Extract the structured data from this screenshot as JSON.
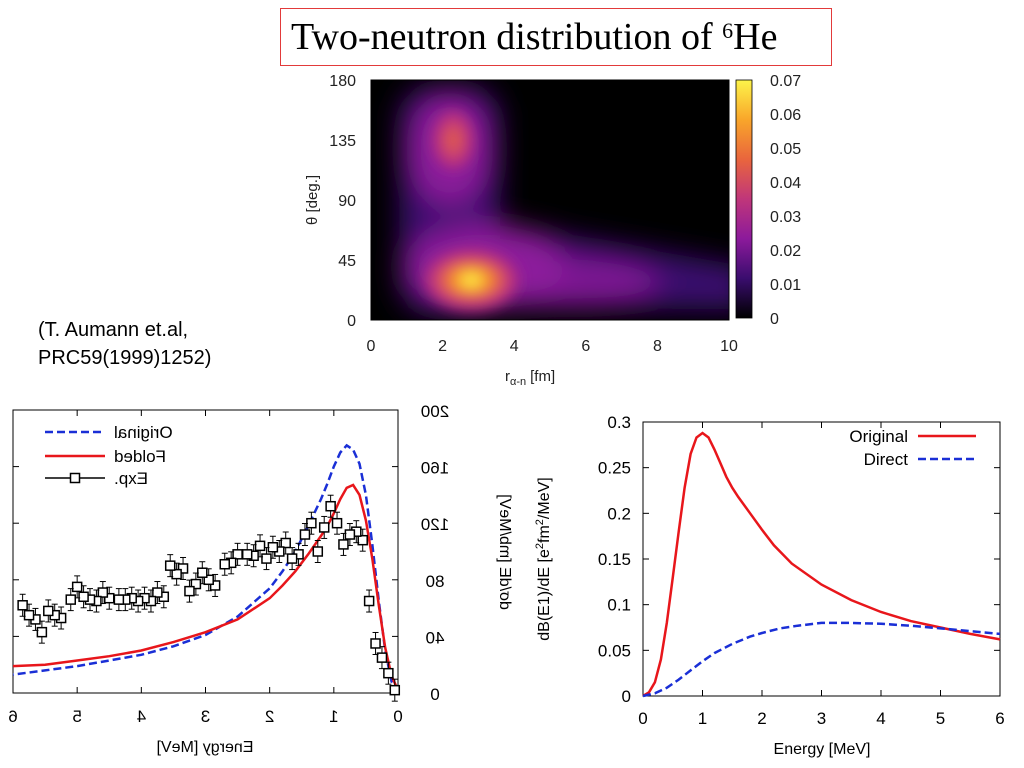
{
  "title": {
    "prefix": "Two-neutron distribution of ",
    "superscript": "6",
    "suffix": "He"
  },
  "citation": {
    "line1": "(T. Aumann et.al,",
    "line2": "PRC59(1999)1252)"
  },
  "chart_data": [
    {
      "type": "heatmap",
      "xlabel_main": "r",
      "xlabel_sub": "α-n",
      "xlabel_unit": "[fm]",
      "ylabel": "θ [deg.]",
      "xlim": [
        0,
        10
      ],
      "ylim": [
        0,
        180
      ],
      "xticks": [
        "0",
        "2",
        "4",
        "6",
        "8",
        "10"
      ],
      "yticks": [
        "0",
        "45",
        "90",
        "135",
        "180"
      ],
      "colorbar": {
        "min": 0,
        "max": 0.07,
        "ticks": [
          "0",
          "0.01",
          "0.02",
          "0.03",
          "0.04",
          "0.05",
          "0.06",
          "0.07"
        ]
      },
      "peaks": [
        {
          "r": 2.8,
          "theta": 30,
          "value": 0.07
        },
        {
          "r": 2.3,
          "theta": 135,
          "value": 0.035
        }
      ],
      "colors": [
        "#000000",
        "#3a0d6e",
        "#8c1a9b",
        "#c0367a",
        "#e9653d",
        "#f9a62a",
        "#fdf44a"
      ]
    },
    {
      "type": "line",
      "mirrored": true,
      "xlabel": "Energy [MeV]",
      "ylabel": "dσ/dE [mb/MeV]",
      "xlim": [
        0,
        6
      ],
      "ylim": [
        0,
        200
      ],
      "xticks": [
        "0",
        "1",
        "2",
        "3",
        "4",
        "5",
        "6"
      ],
      "yticks": [
        "0",
        "40",
        "80",
        "120",
        "160",
        "200"
      ],
      "legend": [
        "Original",
        "Folded",
        "Exp."
      ],
      "legend_position": "top-right",
      "series": [
        {
          "name": "Original",
          "color": "#1a2fd6",
          "dashed": true,
          "x": [
            0.0,
            0.1,
            0.2,
            0.3,
            0.4,
            0.5,
            0.6,
            0.7,
            0.8,
            0.9,
            1.0,
            1.1,
            1.2,
            1.4,
            1.6,
            1.8,
            2.0,
            2.5,
            3.0,
            3.5,
            4.0,
            4.5,
            5.0,
            5.5,
            6.0
          ],
          "y": [
            0,
            8,
            30,
            65,
            105,
            140,
            162,
            172,
            175,
            170,
            160,
            148,
            137,
            118,
            100,
            86,
            74,
            54,
            41,
            33,
            27,
            23,
            19,
            16,
            13
          ]
        },
        {
          "name": "Folded",
          "color": "#e8161b",
          "dashed": false,
          "x": [
            0.0,
            0.1,
            0.2,
            0.3,
            0.4,
            0.5,
            0.6,
            0.7,
            0.8,
            0.9,
            1.0,
            1.1,
            1.2,
            1.4,
            1.6,
            1.8,
            2.0,
            2.5,
            3.0,
            3.5,
            4.0,
            4.5,
            5.0,
            5.5,
            6.0
          ],
          "y": [
            2,
            12,
            32,
            62,
            95,
            122,
            140,
            147,
            145,
            137,
            127,
            118,
            111,
            98,
            86,
            76,
            67,
            52,
            43,
            36,
            30,
            26,
            23,
            20,
            19
          ]
        },
        {
          "name": "Exp.",
          "color": "#000000",
          "marker": "square",
          "x": [
            0.05,
            0.15,
            0.25,
            0.35,
            0.45,
            0.55,
            0.65,
            0.75,
            0.85,
            0.95,
            1.05,
            1.15,
            1.25,
            1.35,
            1.45,
            1.55,
            1.65,
            1.75,
            1.85,
            1.95,
            2.05,
            2.15,
            2.25,
            2.35,
            2.5,
            2.6,
            2.7,
            2.85,
            2.95,
            3.05,
            3.15,
            3.25,
            3.35,
            3.45,
            3.55,
            3.65,
            3.75,
            3.85,
            3.95,
            4.05,
            4.15,
            4.25,
            4.35,
            4.5,
            4.6,
            4.7,
            4.8,
            4.9,
            5.0,
            5.1,
            5.25,
            5.35,
            5.45,
            5.55,
            5.65,
            5.75,
            5.85
          ],
          "y": [
            2,
            14,
            25,
            35,
            65,
            108,
            114,
            112,
            105,
            120,
            132,
            117,
            100,
            120,
            112,
            98,
            95,
            106,
            100,
            103,
            95,
            104,
            97,
            98,
            98,
            92,
            91,
            76,
            80,
            85,
            77,
            72,
            88,
            84,
            90,
            68,
            71,
            65,
            67,
            65,
            67,
            66,
            66,
            67,
            71,
            65,
            66,
            68,
            75,
            66,
            53,
            55,
            58,
            43,
            52,
            55,
            62
          ]
        }
      ]
    },
    {
      "type": "line",
      "xlabel": "Energy [MeV]",
      "ylabel_main": "dB(E1)/dE [e",
      "ylabel_sup1": "2",
      "ylabel_mid": "fm",
      "ylabel_sup2": "2",
      "ylabel_end": "/MeV]",
      "xlim": [
        0,
        6
      ],
      "ylim": [
        0,
        0.3
      ],
      "xticks": [
        "0",
        "1",
        "2",
        "3",
        "4",
        "5",
        "6"
      ],
      "yticks": [
        "0",
        "0.05",
        "0.1",
        "0.15",
        "0.2",
        "0.25",
        "0.3"
      ],
      "legend": [
        "Original",
        "Direct"
      ],
      "legend_position": "top-right",
      "series": [
        {
          "name": "Original",
          "color": "#e8161b",
          "dashed": false,
          "x": [
            0.0,
            0.1,
            0.2,
            0.3,
            0.4,
            0.5,
            0.6,
            0.7,
            0.8,
            0.9,
            1.0,
            1.1,
            1.2,
            1.3,
            1.4,
            1.5,
            1.6,
            1.8,
            2.0,
            2.2,
            2.5,
            3.0,
            3.5,
            4.0,
            4.5,
            5.0,
            5.5,
            6.0
          ],
          "y": [
            0.0,
            0.004,
            0.015,
            0.04,
            0.08,
            0.13,
            0.18,
            0.228,
            0.265,
            0.283,
            0.288,
            0.283,
            0.27,
            0.255,
            0.24,
            0.228,
            0.218,
            0.2,
            0.182,
            0.165,
            0.145,
            0.122,
            0.105,
            0.092,
            0.082,
            0.075,
            0.068,
            0.062
          ]
        },
        {
          "name": "Direct",
          "color": "#1a2fd6",
          "dashed": true,
          "x": [
            0.0,
            0.2,
            0.4,
            0.6,
            0.8,
            1.0,
            1.2,
            1.5,
            1.8,
            2.0,
            2.3,
            2.6,
            3.0,
            3.5,
            4.0,
            4.5,
            5.0,
            5.5,
            6.0
          ],
          "y": [
            0.0,
            0.003,
            0.009,
            0.018,
            0.028,
            0.038,
            0.047,
            0.057,
            0.065,
            0.069,
            0.074,
            0.077,
            0.08,
            0.08,
            0.079,
            0.077,
            0.074,
            0.071,
            0.068
          ]
        }
      ]
    }
  ]
}
